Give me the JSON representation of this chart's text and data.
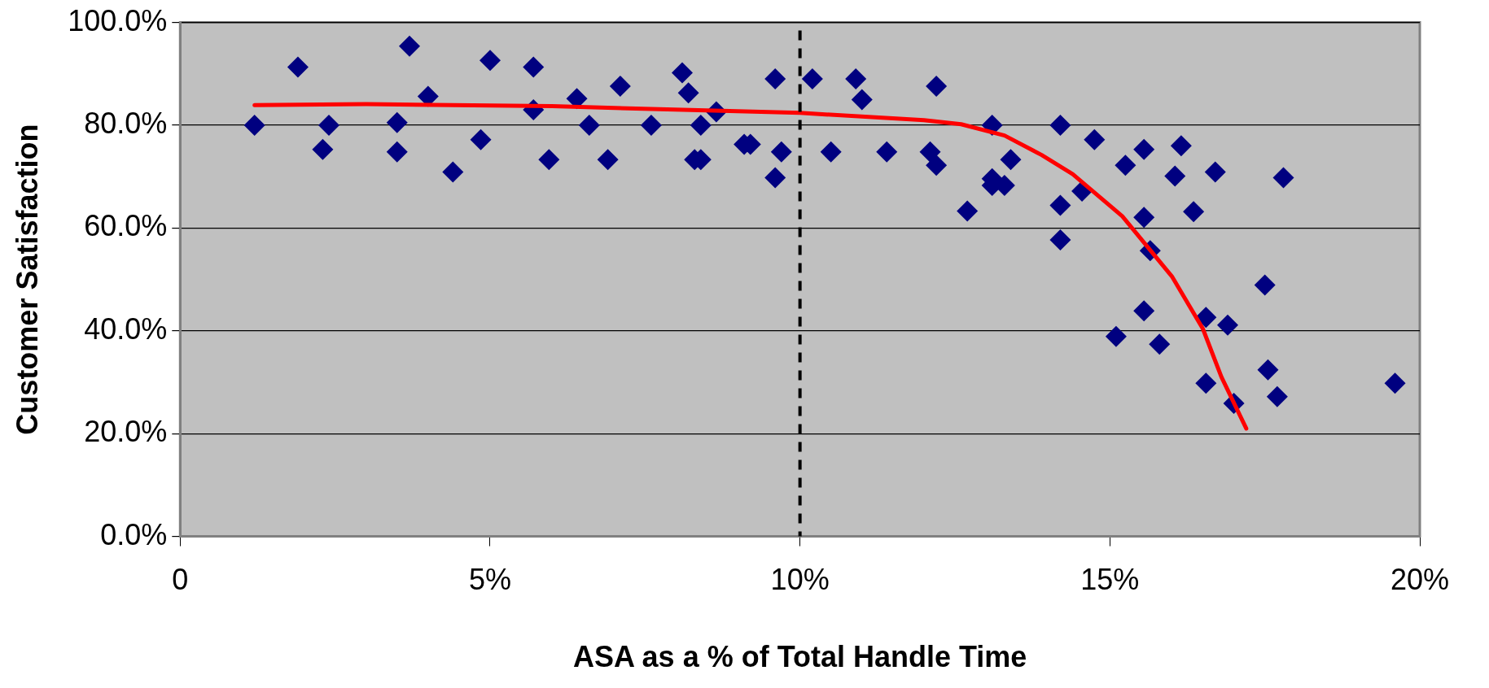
{
  "chart_data": {
    "type": "scatter",
    "xlabel": "ASA as a % of Total Handle Time",
    "ylabel": "Customer Satisfaction",
    "xlim": [
      0,
      20
    ],
    "xticks": [
      0,
      {
        "value": 5,
        "label": "5%"
      },
      {
        "value": 10,
        "label": "10%"
      },
      {
        "value": 15,
        "label": "15%"
      },
      {
        "value": 20,
        "label": "20%"
      }
    ],
    "ylim": [
      0,
      100
    ],
    "yticks": [
      {
        "value": 0,
        "label": "0.0%"
      },
      {
        "value": 20,
        "label": "20.0%"
      },
      {
        "value": 40,
        "label": "40.0%"
      },
      {
        "value": 60,
        "label": "60.0%"
      },
      {
        "value": 80,
        "label": "80.0%"
      },
      {
        "value": 100,
        "label": "100.0%"
      }
    ],
    "grid": "y",
    "legend": false,
    "marker": "diamond",
    "ref_lines": [
      {
        "axis": "x",
        "value": 10,
        "color": "#000000",
        "line_style": "dashed"
      }
    ],
    "series": [
      {
        "color": "#000080",
        "x": [
          1.2,
          1.9,
          2.3,
          2.4,
          3.5,
          3.5,
          3.7,
          4.0,
          4.4,
          4.85,
          5.0,
          5.7,
          5.7,
          5.95,
          6.4,
          6.6,
          6.9,
          7.1,
          7.6,
          8.1,
          8.2,
          8.3,
          8.4,
          8.4,
          8.65,
          9.1,
          9.2,
          9.6,
          9.6,
          9.7,
          10.2,
          10.5,
          10.9,
          11.0,
          11.4,
          12.1,
          12.2,
          12.2,
          12.7,
          13.1,
          13.1,
          13.1,
          13.3,
          13.4,
          14.2,
          14.2,
          14.2,
          14.55,
          14.75,
          15.1,
          15.25,
          15.55,
          15.55,
          15.55,
          15.65,
          15.8,
          16.05,
          16.15,
          16.35,
          16.55,
          16.55,
          16.7,
          16.9,
          17.0,
          17.5,
          17.55,
          17.7,
          17.8,
          19.6
        ],
        "values": [
          80,
          91.3,
          75.3,
          80,
          80.5,
          74.8,
          95.4,
          85.6,
          70.9,
          77.2,
          92.6,
          91.3,
          83,
          73.3,
          85.2,
          80,
          73.3,
          87.6,
          80,
          90.2,
          86.3,
          73.3,
          73.3,
          80,
          82.6,
          76.3,
          76.3,
          69.8,
          89,
          74.8,
          89,
          74.8,
          89,
          85,
          74.8,
          74.8,
          72.2,
          87.6,
          63.3,
          80,
          69.6,
          68.3,
          68.3,
          73.3,
          80,
          64.4,
          57.7,
          67.2,
          77.2,
          38.9,
          72.2,
          62.1,
          75.3,
          43.9,
          55.6,
          37.4,
          70.1,
          76,
          63.2,
          42.6,
          29.8,
          70.9,
          41.1,
          25.9,
          48.9,
          32.4,
          27.2,
          69.8,
          29.8
        ]
      },
      {
        "type": "line",
        "color": "#ff0000",
        "marker": "none",
        "x": [
          1.2,
          3,
          6,
          10,
          12,
          12.6,
          13.3,
          13.9,
          14.4,
          15.2,
          16,
          16.5,
          16.8,
          17.2
        ],
        "values": [
          83.9,
          84.1,
          83.7,
          82.4,
          81,
          80.2,
          78,
          74.2,
          70.5,
          62.3,
          50.6,
          40.4,
          31,
          21
        ]
      }
    ]
  }
}
